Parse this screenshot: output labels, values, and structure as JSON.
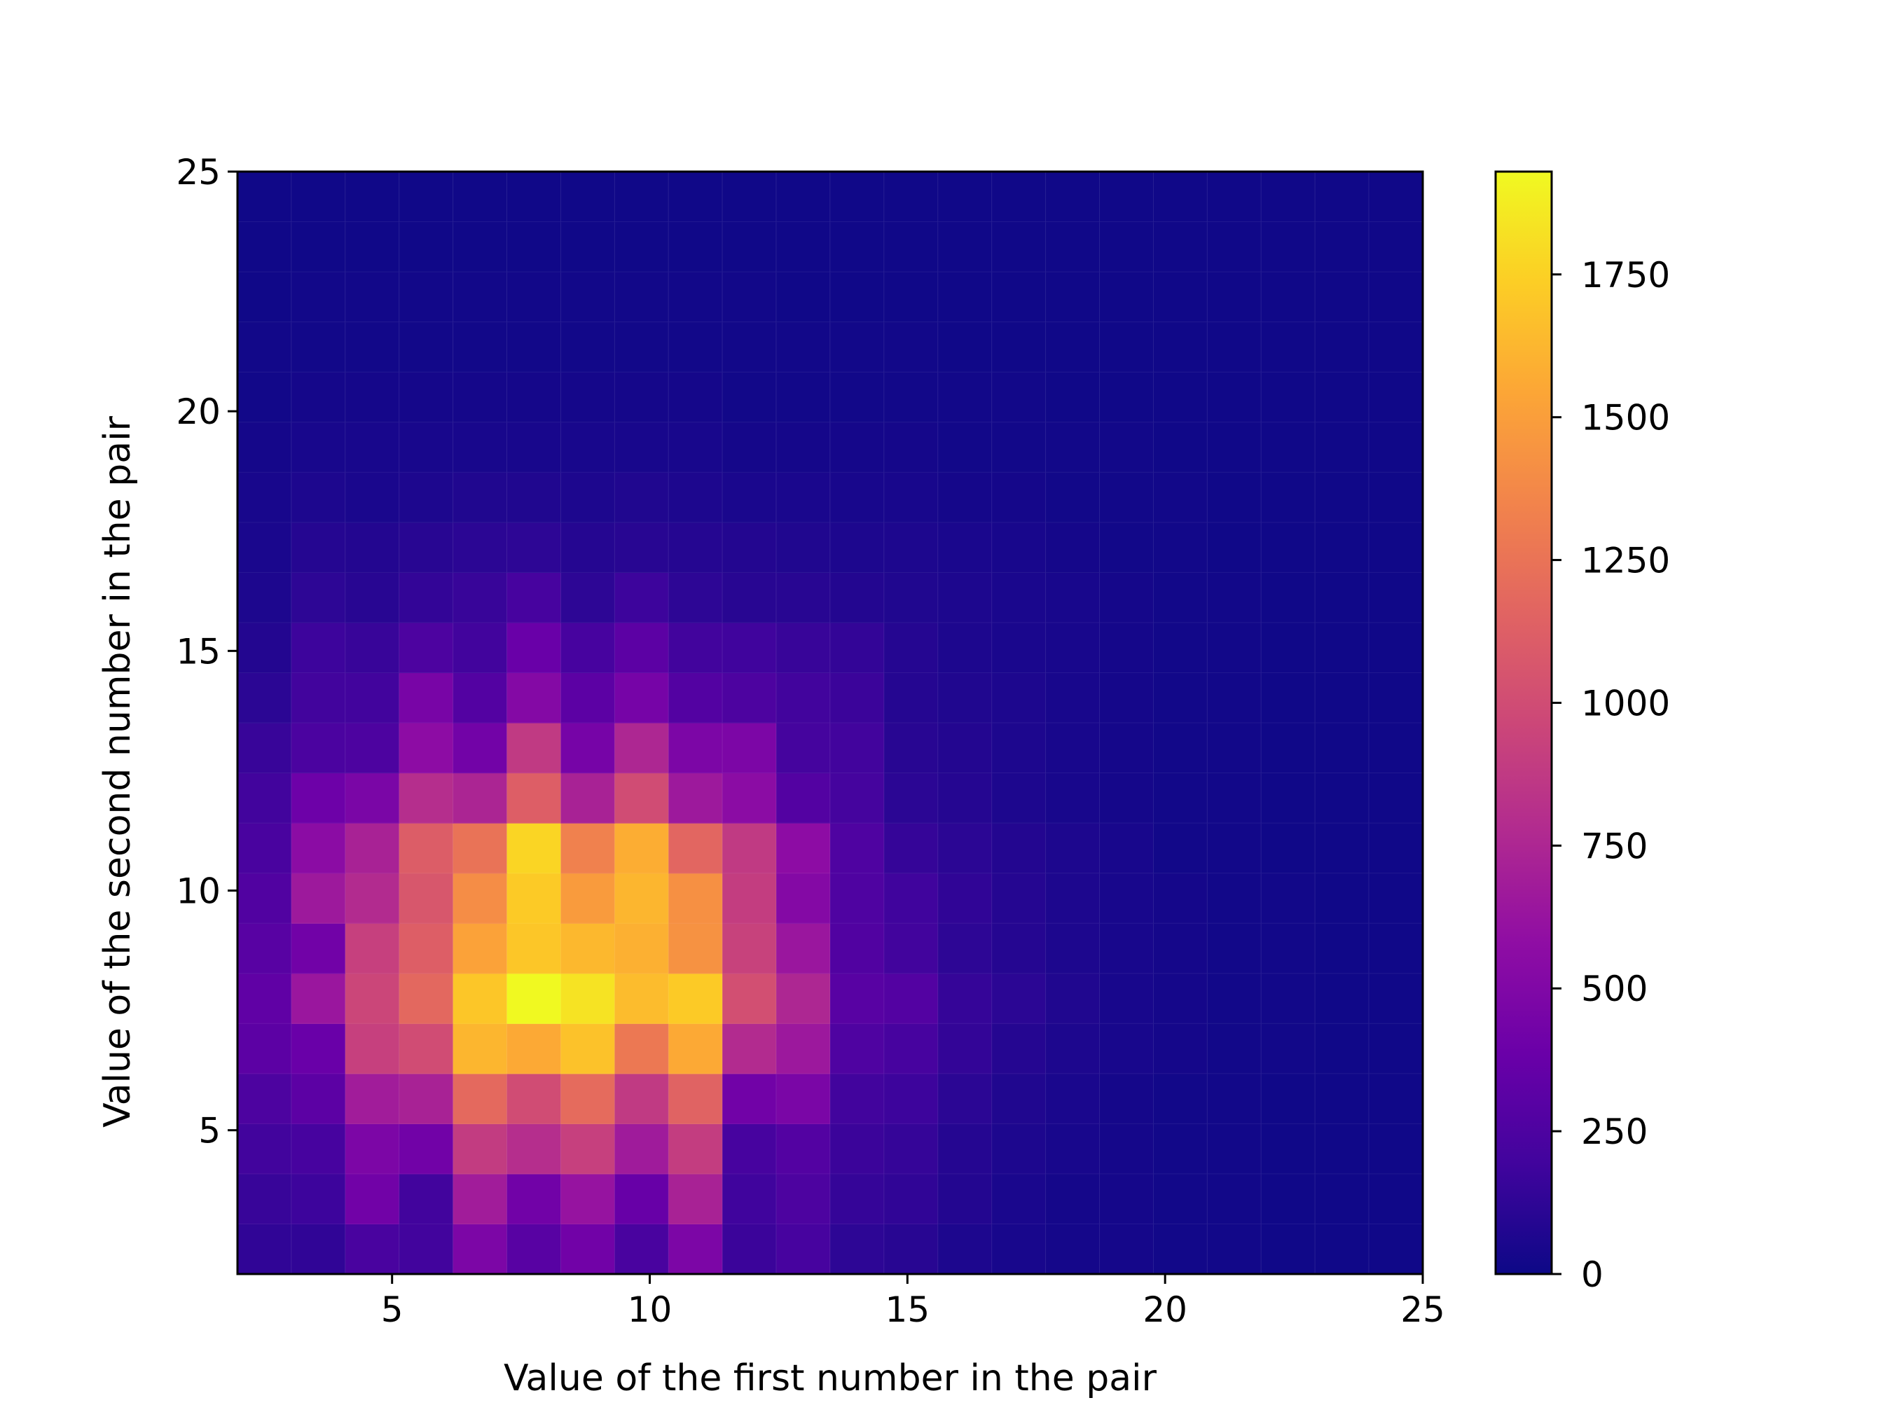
{
  "chart_data": {
    "type": "heatmap",
    "title": "",
    "xlabel": "Value of the first number in the pair",
    "ylabel": "Value of the second number in the pair",
    "xlim": [
      2,
      25
    ],
    "ylim": [
      2,
      25
    ],
    "x_ticks": [
      "5",
      "10",
      "15",
      "20",
      "25"
    ],
    "y_ticks": [
      "5",
      "10",
      "15",
      "20",
      "25"
    ],
    "bins": 22,
    "colormap": "plasma",
    "colorbar": {
      "vmin": 0,
      "vmax": 1930,
      "ticks": [
        "0",
        "250",
        "500",
        "750",
        "1000",
        "1250",
        "1500",
        "1750"
      ]
    },
    "grid": false,
    "note_rows": "z[row][col]: row 0 = lowest y-bin (y 2.0–3.05), col 0 = lowest x-bin (x 2.0–3.05)",
    "z": [
      [
        130,
        130,
        230,
        200,
        480,
        300,
        420,
        230,
        480,
        170,
        220,
        120,
        100,
        60,
        40,
        30,
        30,
        20,
        20,
        10,
        10,
        10
      ],
      [
        160,
        180,
        420,
        200,
        680,
        420,
        620,
        370,
        720,
        190,
        250,
        150,
        130,
        80,
        50,
        30,
        30,
        20,
        20,
        10,
        10,
        10
      ],
      [
        200,
        220,
        480,
        420,
        890,
        800,
        920,
        670,
        900,
        220,
        280,
        170,
        150,
        90,
        60,
        40,
        30,
        20,
        20,
        10,
        10,
        10
      ],
      [
        250,
        320,
        680,
        720,
        1190,
        1000,
        1200,
        880,
        1150,
        420,
        470,
        200,
        180,
        110,
        70,
        50,
        30,
        20,
        20,
        10,
        10,
        10
      ],
      [
        320,
        380,
        920,
        1000,
        1620,
        1560,
        1680,
        1280,
        1560,
        780,
        650,
        260,
        220,
        140,
        90,
        60,
        40,
        30,
        20,
        20,
        10,
        10
      ],
      [
        340,
        640,
        960,
        1180,
        1700,
        1930,
        1830,
        1650,
        1720,
        1020,
        750,
        300,
        280,
        150,
        110,
        70,
        40,
        30,
        20,
        20,
        10,
        10
      ],
      [
        300,
        420,
        920,
        1120,
        1520,
        1700,
        1630,
        1590,
        1430,
        930,
        640,
        270,
        200,
        120,
        90,
        60,
        40,
        30,
        20,
        20,
        10,
        10
      ],
      [
        270,
        660,
        780,
        1070,
        1400,
        1720,
        1480,
        1620,
        1420,
        900,
        520,
        260,
        190,
        130,
        90,
        60,
        40,
        30,
        20,
        20,
        10,
        10
      ],
      [
        230,
        560,
        720,
        1110,
        1250,
        1770,
        1330,
        1580,
        1170,
        880,
        570,
        260,
        150,
        110,
        80,
        60,
        40,
        20,
        20,
        10,
        10,
        10
      ],
      [
        200,
        400,
        470,
        800,
        740,
        1120,
        720,
        1000,
        660,
        560,
        280,
        210,
        110,
        90,
        60,
        40,
        30,
        20,
        20,
        10,
        10,
        10
      ],
      [
        160,
        240,
        250,
        570,
        430,
        880,
        450,
        750,
        480,
        480,
        210,
        200,
        100,
        80,
        60,
        40,
        30,
        20,
        20,
        10,
        10,
        10
      ],
      [
        110,
        200,
        200,
        460,
        280,
        520,
        320,
        450,
        280,
        250,
        200,
        170,
        90,
        70,
        60,
        40,
        30,
        20,
        20,
        10,
        10,
        10
      ],
      [
        80,
        180,
        160,
        250,
        200,
        380,
        220,
        320,
        200,
        190,
        160,
        140,
        90,
        60,
        50,
        40,
        30,
        20,
        20,
        10,
        10,
        10
      ],
      [
        60,
        120,
        100,
        140,
        160,
        220,
        120,
        180,
        120,
        100,
        100,
        80,
        70,
        60,
        50,
        40,
        30,
        20,
        20,
        10,
        10,
        10
      ],
      [
        50,
        90,
        80,
        100,
        110,
        120,
        90,
        100,
        90,
        80,
        70,
        60,
        60,
        50,
        40,
        30,
        20,
        20,
        10,
        10,
        10,
        10
      ],
      [
        40,
        60,
        50,
        60,
        70,
        70,
        60,
        70,
        60,
        50,
        50,
        40,
        40,
        30,
        30,
        20,
        20,
        20,
        10,
        10,
        10,
        10
      ],
      [
        30,
        40,
        40,
        40,
        40,
        40,
        40,
        40,
        40,
        30,
        30,
        30,
        30,
        20,
        20,
        20,
        20,
        10,
        10,
        10,
        10,
        10
      ],
      [
        20,
        30,
        30,
        30,
        30,
        30,
        30,
        30,
        30,
        20,
        20,
        20,
        20,
        20,
        20,
        10,
        10,
        10,
        10,
        10,
        10,
        10
      ],
      [
        20,
        20,
        20,
        20,
        20,
        20,
        20,
        20,
        20,
        20,
        20,
        20,
        20,
        10,
        10,
        10,
        10,
        10,
        10,
        10,
        10,
        10
      ],
      [
        10,
        20,
        20,
        20,
        20,
        20,
        20,
        20,
        20,
        20,
        10,
        10,
        10,
        10,
        10,
        10,
        10,
        10,
        10,
        10,
        10,
        10
      ],
      [
        10,
        10,
        10,
        10,
        10,
        10,
        10,
        10,
        10,
        10,
        10,
        10,
        10,
        10,
        10,
        10,
        10,
        10,
        10,
        10,
        10,
        10
      ],
      [
        10,
        10,
        10,
        10,
        10,
        10,
        10,
        10,
        10,
        10,
        10,
        10,
        10,
        10,
        10,
        10,
        10,
        10,
        10,
        10,
        10,
        10
      ]
    ]
  }
}
